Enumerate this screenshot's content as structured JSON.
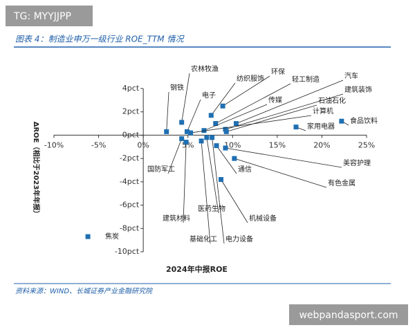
{
  "watermark_top": "TG: MYYJJPP",
  "watermark_bottom": "webpandasport.com",
  "source": "资料来源：WIND、长城证券产业金融研究院",
  "chart_data": {
    "type": "scatter",
    "title": "图表 4：制造业申万一级行业 ROE_TTM 情况",
    "x_label": "2024年中报ROE",
    "y_label": "ΔROE（相比于2023年年报）",
    "color": "#1f6fb2",
    "xlim": [
      -10,
      25
    ],
    "ylim": [
      -10,
      4
    ],
    "xticks": [
      {
        "value": -10,
        "label": "-10%"
      },
      {
        "value": -5,
        "label": "-5%"
      },
      {
        "value": 0,
        "label": "0%"
      },
      {
        "value": 5,
        "label": "5%"
      },
      {
        "value": 10,
        "label": "10%"
      },
      {
        "value": 15,
        "label": "15%"
      },
      {
        "value": 20,
        "label": "20%"
      },
      {
        "value": 25,
        "label": "25%"
      }
    ],
    "yticks": [
      {
        "value": 4,
        "label": "4pct"
      },
      {
        "value": 2,
        "label": "2pct"
      },
      {
        "value": 0,
        "label": "0pct"
      },
      {
        "value": -2,
        "label": "-2pct"
      },
      {
        "value": -4,
        "label": "-4pct"
      },
      {
        "value": -6,
        "label": "-6pct"
      },
      {
        "value": -8,
        "label": "-8pct"
      },
      {
        "value": -10,
        "label": "-10pct"
      }
    ],
    "names": [
      "钢铁",
      "农林牧渔",
      "电子",
      "纺织服饰",
      "环保",
      "轻工制造",
      "汽车",
      "建筑装饰",
      "传媒",
      "石油石化",
      "计算机",
      "家用电器",
      "食品饮料",
      "美容护理",
      "有色金属",
      "通信",
      "国防军工",
      "建筑材料",
      "医药生物",
      "基础化工",
      "电力设备",
      "机械设备",
      "焦炭"
    ],
    "x": [
      2.6,
      4.3,
      4.9,
      7.6,
      8.9,
      8.1,
      10.4,
      9.2,
      6.8,
      9.3,
      5.3,
      17.1,
      22.2,
      9.2,
      10.2,
      8.2,
      4.3,
      4.8,
      7.1,
      6.5,
      7.7,
      8.7,
      -6.2
    ],
    "y": [
      0.3,
      1.1,
      0.3,
      1.7,
      2.5,
      1.0,
      1.0,
      0.5,
      0.4,
      0.3,
      0.2,
      0.7,
      1.2,
      -1.1,
      -2.0,
      -0.9,
      -0.3,
      -0.6,
      -0.2,
      -0.5,
      -0.2,
      -3.8,
      -8.7
    ]
  }
}
